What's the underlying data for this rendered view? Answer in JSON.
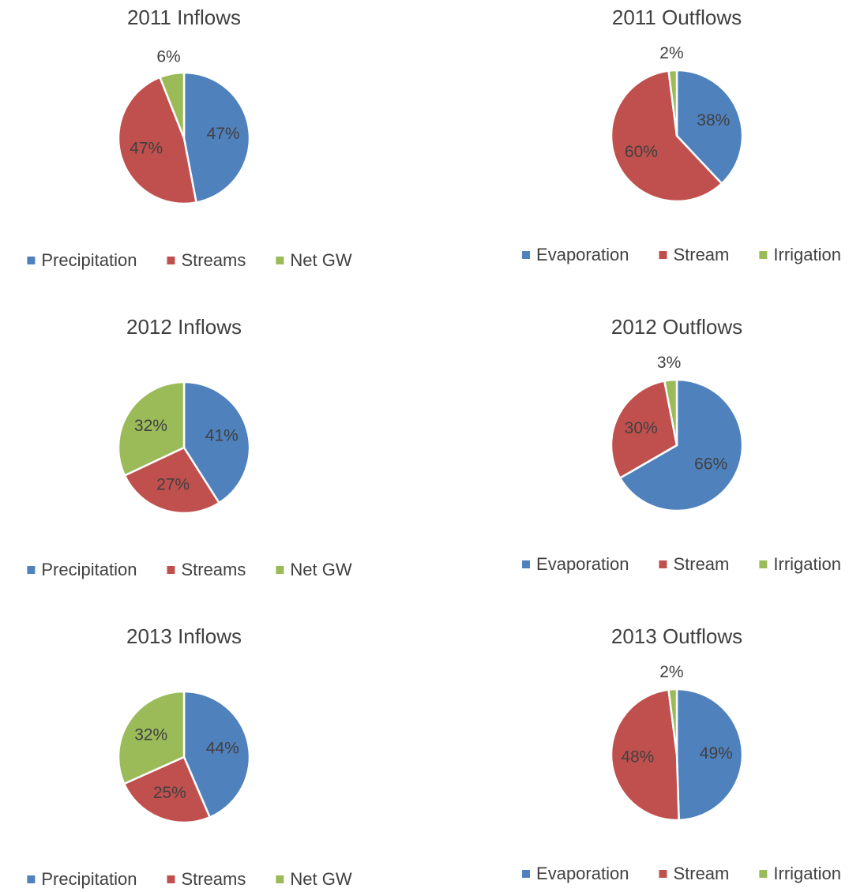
{
  "chart_data": [
    {
      "type": "pie",
      "title": "2011 Inflows",
      "categories": [
        "Precipitation",
        "Streams",
        "Net GW"
      ],
      "values": [
        47,
        47,
        6
      ],
      "value_labels": [
        "47%",
        "47%",
        "6%"
      ],
      "colors": [
        "#4f81bd",
        "#c0504d",
        "#9bbb59"
      ],
      "legend": "bottom"
    },
    {
      "type": "pie",
      "title": "2011 Outflows",
      "categories": [
        "Evaporation",
        "Stream",
        "Irrigation"
      ],
      "values": [
        38,
        60,
        2
      ],
      "value_labels": [
        "38%",
        "60%",
        "2%"
      ],
      "colors": [
        "#4f81bd",
        "#c0504d",
        "#9bbb59"
      ],
      "legend": "bottom"
    },
    {
      "type": "pie",
      "title": "2012 Inflows",
      "categories": [
        "Precipitation",
        "Streams",
        "Net GW"
      ],
      "values": [
        41,
        27,
        32
      ],
      "value_labels": [
        "41%",
        "27%",
        "32%"
      ],
      "colors": [
        "#4f81bd",
        "#c0504d",
        "#9bbb59"
      ],
      "legend": "bottom"
    },
    {
      "type": "pie",
      "title": "2012 Outflows",
      "categories": [
        "Evaporation",
        "Stream",
        "Irrigation"
      ],
      "values": [
        66,
        30,
        3
      ],
      "value_labels": [
        "66%",
        "30%",
        "3%"
      ],
      "colors": [
        "#4f81bd",
        "#c0504d",
        "#9bbb59"
      ],
      "legend": "bottom"
    },
    {
      "type": "pie",
      "title": "2013 Inflows",
      "categories": [
        "Precipitation",
        "Streams",
        "Net GW"
      ],
      "values": [
        44,
        25,
        32
      ],
      "value_labels": [
        "44%",
        "25%",
        "32%"
      ],
      "colors": [
        "#4f81bd",
        "#c0504d",
        "#9bbb59"
      ],
      "legend": "bottom"
    },
    {
      "type": "pie",
      "title": "2013 Outflows",
      "categories": [
        "Evaporation",
        "Stream",
        "Irrigation"
      ],
      "values": [
        49,
        48,
        2
      ],
      "value_labels": [
        "49%",
        "48%",
        "2%"
      ],
      "colors": [
        "#4f81bd",
        "#c0504d",
        "#9bbb59"
      ],
      "legend": "bottom"
    }
  ]
}
